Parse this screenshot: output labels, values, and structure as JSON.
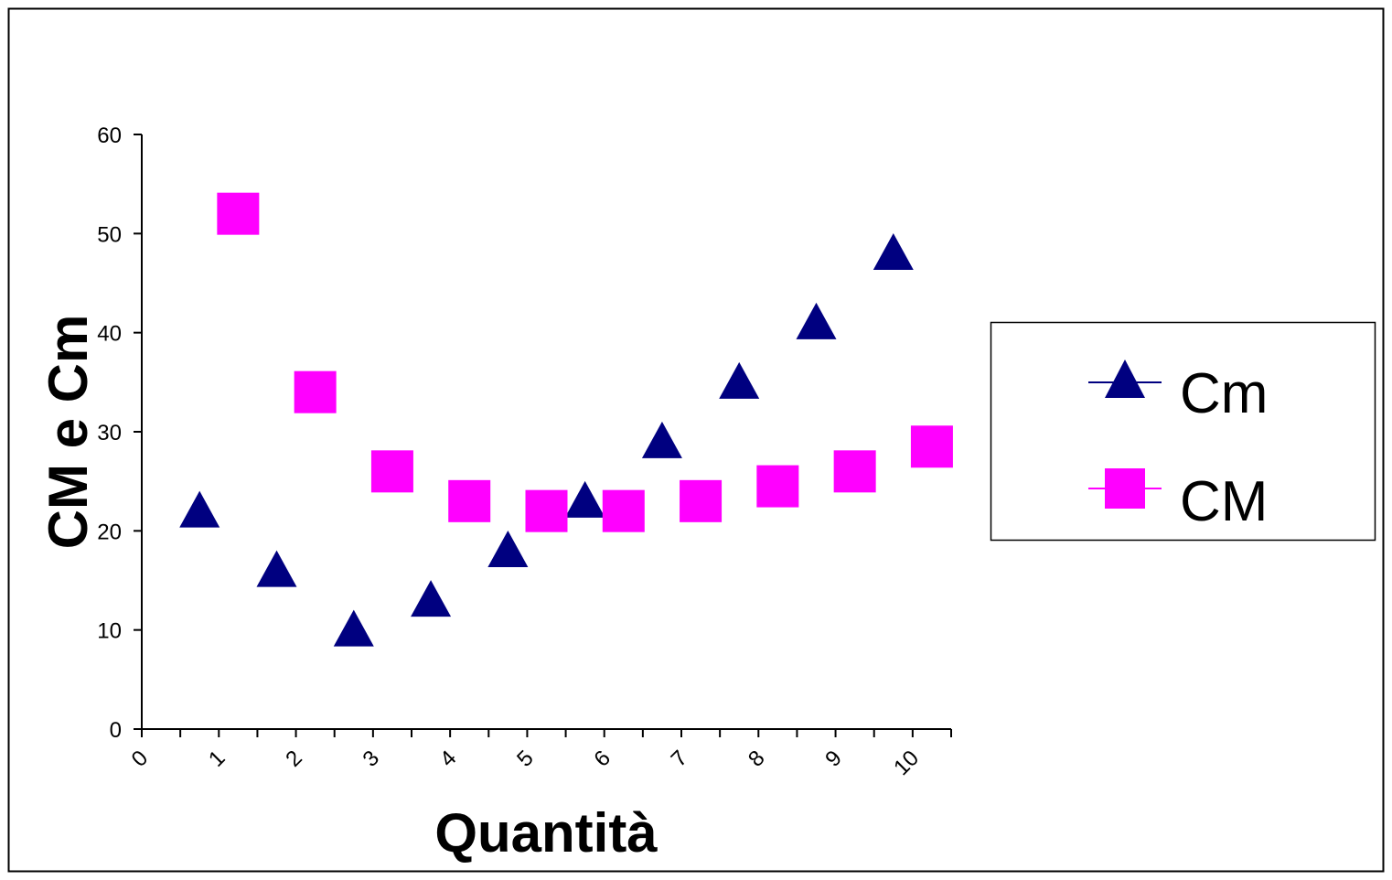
{
  "chart_data": {
    "type": "scatter",
    "title": "",
    "xlabel": "Quantità",
    "ylabel": "CM e Cm",
    "xlim": [
      0,
      10.5
    ],
    "ylim": [
      0,
      60
    ],
    "x_ticks": [
      "0",
      "1",
      "2",
      "3",
      "4",
      "5",
      "6",
      "7",
      "8",
      "9",
      "10"
    ],
    "y_ticks": [
      "0",
      "10",
      "20",
      "30",
      "40",
      "50",
      "60"
    ],
    "grid": false,
    "legend_position": "right",
    "series": [
      {
        "name": "Cm",
        "marker": "triangle",
        "color": "#000080",
        "x": [
          0.75,
          1.75,
          2.75,
          3.75,
          4.75,
          5.75,
          6.75,
          7.75,
          8.75,
          9.75
        ],
        "y": [
          22,
          16,
          10,
          13,
          18,
          23,
          29,
          35,
          41,
          48
        ]
      },
      {
        "name": "CM",
        "marker": "square",
        "color": "#ff00ff",
        "x": [
          1.25,
          2.25,
          3.25,
          4.25,
          5.25,
          6.25,
          7.25,
          8.25,
          9.25,
          10.25
        ],
        "y": [
          52,
          34,
          26,
          23,
          22,
          22,
          23,
          24.5,
          26,
          28.5
        ]
      }
    ]
  }
}
